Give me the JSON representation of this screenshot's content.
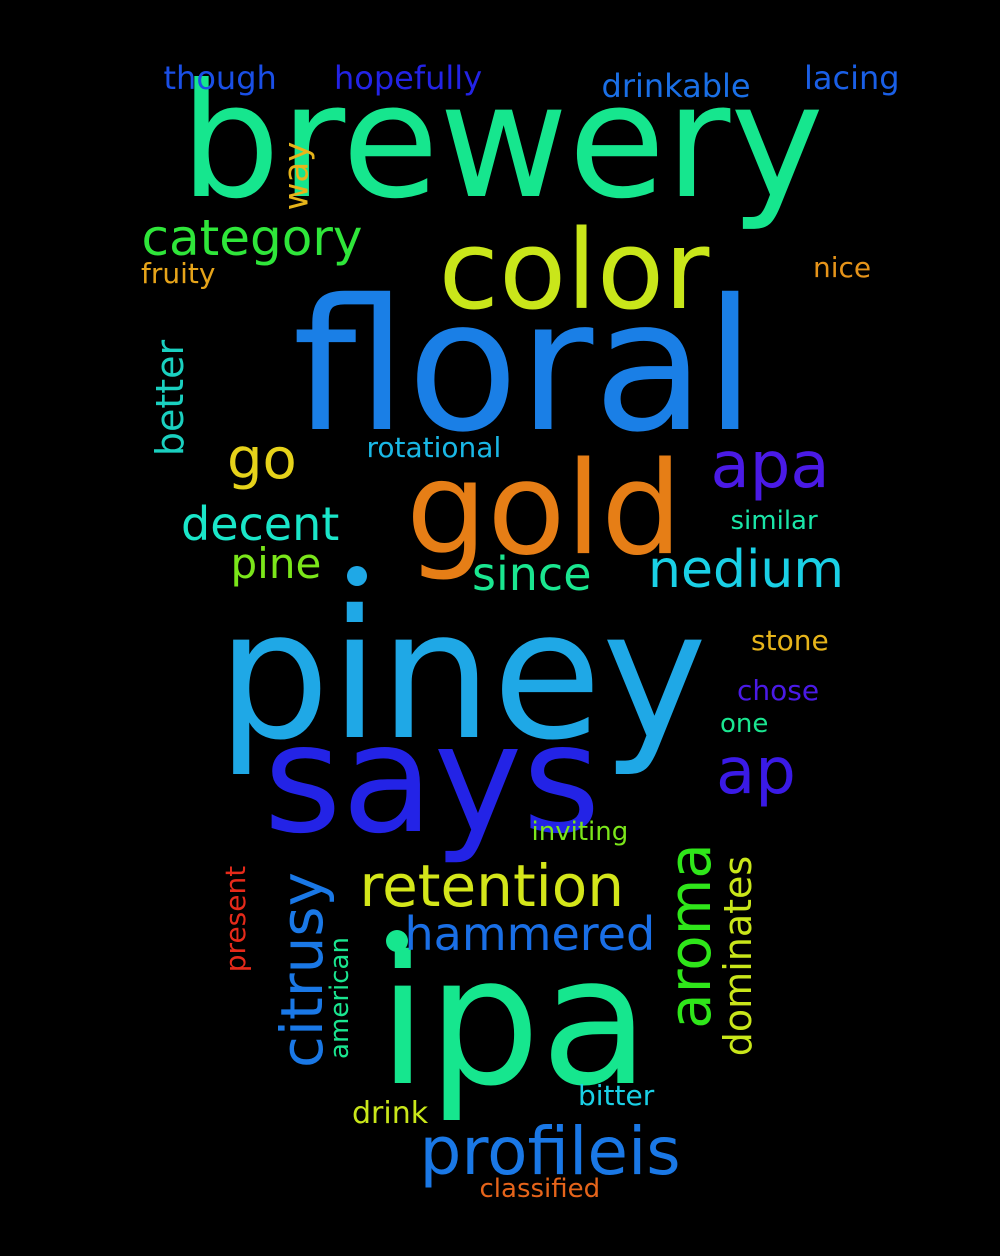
{
  "words": [
    {
      "text": "brewery",
      "color": "#16e68e",
      "orientation": "horizontal"
    },
    {
      "text": "floral",
      "color": "#1a7fe6",
      "orientation": "horizontal"
    },
    {
      "text": "piney",
      "color": "#1fa8e6",
      "orientation": "horizontal"
    },
    {
      "text": "ipa",
      "color": "#16e68e",
      "orientation": "horizontal"
    },
    {
      "text": "says",
      "color": "#2323e6",
      "orientation": "horizontal"
    },
    {
      "text": "gold",
      "color": "#e67e16",
      "orientation": "horizontal"
    },
    {
      "text": "color",
      "color": "#c9e61a",
      "orientation": "horizontal"
    },
    {
      "text": "apa",
      "color": "#4a1ae6",
      "orientation": "horizontal"
    },
    {
      "text": "ap",
      "color": "#3a1ae6",
      "orientation": "horizontal"
    },
    {
      "text": "profileis",
      "color": "#1a78e6",
      "orientation": "horizontal"
    },
    {
      "text": "retention",
      "color": "#d4e61a",
      "orientation": "horizontal"
    },
    {
      "text": "aroma",
      "color": "#2fe61a",
      "orientation": "vertical"
    },
    {
      "text": "citrusy",
      "color": "#1a78e6",
      "orientation": "vertical"
    },
    {
      "text": "nedium",
      "color": "#1ad0e6",
      "orientation": "horizontal"
    },
    {
      "text": "category",
      "color": "#2fe63a",
      "orientation": "horizontal"
    },
    {
      "text": "decent",
      "color": "#1ae6c9",
      "orientation": "horizontal"
    },
    {
      "text": "since",
      "color": "#1ae690",
      "orientation": "horizontal"
    },
    {
      "text": "hammered",
      "color": "#1a6fe6",
      "orientation": "horizontal"
    },
    {
      "text": "go",
      "color": "#e6d21a",
      "orientation": "horizontal"
    },
    {
      "text": "pine",
      "color": "#7be61a",
      "orientation": "horizontal"
    },
    {
      "text": "better",
      "color": "#1ad0c0",
      "orientation": "vertical"
    },
    {
      "text": "dominates",
      "color": "#c9e61a",
      "orientation": "vertical"
    },
    {
      "text": "way",
      "color": "#e6b41a",
      "orientation": "vertical"
    },
    {
      "text": "drinkable",
      "color": "#1a6fe6",
      "orientation": "horizontal"
    },
    {
      "text": "hopefully",
      "color": "#2323e6",
      "orientation": "horizontal"
    },
    {
      "text": "though",
      "color": "#1a4fe6",
      "orientation": "horizontal"
    },
    {
      "text": "lacing",
      "color": "#1a5fe6",
      "orientation": "horizontal"
    },
    {
      "text": "rotational",
      "color": "#1ab8e6",
      "orientation": "horizontal"
    },
    {
      "text": "similar",
      "color": "#1ae6a8",
      "orientation": "horizontal"
    },
    {
      "text": "stone",
      "color": "#e6b41a",
      "orientation": "horizontal"
    },
    {
      "text": "chose",
      "color": "#4a1ae6",
      "orientation": "horizontal"
    },
    {
      "text": "one",
      "color": "#1ae690",
      "orientation": "horizontal"
    },
    {
      "text": "inviting",
      "color": "#7be61a",
      "orientation": "horizontal"
    },
    {
      "text": "bitter",
      "color": "#1ad0e6",
      "orientation": "horizontal"
    },
    {
      "text": "drink",
      "color": "#c9e61a",
      "orientation": "horizontal"
    },
    {
      "text": "classified",
      "color": "#e6641a",
      "orientation": "horizontal"
    },
    {
      "text": "present",
      "color": "#e62a1a",
      "orientation": "vertical"
    },
    {
      "text": "american",
      "color": "#1ae690",
      "orientation": "vertical"
    },
    {
      "text": "fruity",
      "color": "#e6a41a",
      "orientation": "horizontal"
    },
    {
      "text": "nice",
      "color": "#e6941a",
      "orientation": "horizontal"
    }
  ],
  "dots": [
    {
      "color": "#1fa8e6"
    },
    {
      "color": "#16e68e"
    }
  ]
}
